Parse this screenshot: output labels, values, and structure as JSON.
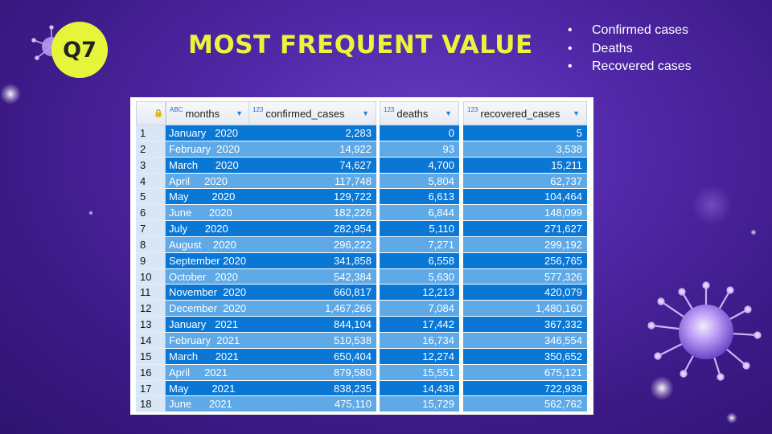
{
  "badge": "Q7",
  "title": "MOST FREQUENT VALUE",
  "bullets": [
    "Confirmed cases",
    "Deaths",
    "Recovered cases"
  ],
  "table": {
    "columns": [
      {
        "type": "ABC",
        "name": "months"
      },
      {
        "type": "123",
        "name": "confirmed_cases"
      },
      {
        "type": "123",
        "name": "deaths"
      },
      {
        "type": "123",
        "name": "recovered_cases"
      }
    ],
    "rows": [
      {
        "n": "1",
        "month": "January   2020",
        "confirmed": "2,283",
        "deaths": "0",
        "recovered": "5"
      },
      {
        "n": "2",
        "month": "February  2020",
        "confirmed": "14,922",
        "deaths": "93",
        "recovered": "3,538"
      },
      {
        "n": "3",
        "month": "March      2020",
        "confirmed": "74,627",
        "deaths": "4,700",
        "recovered": "15,211"
      },
      {
        "n": "4",
        "month": "April     2020",
        "confirmed": "117,748",
        "deaths": "5,804",
        "recovered": "62,737"
      },
      {
        "n": "5",
        "month": "May        2020",
        "confirmed": "129,722",
        "deaths": "6,613",
        "recovered": "104,464"
      },
      {
        "n": "6",
        "month": "June      2020",
        "confirmed": "182,226",
        "deaths": "6,844",
        "recovered": "148,099"
      },
      {
        "n": "7",
        "month": "July      2020",
        "confirmed": "282,954",
        "deaths": "5,110",
        "recovered": "271,627"
      },
      {
        "n": "8",
        "month": "August    2020",
        "confirmed": "296,222",
        "deaths": "7,271",
        "recovered": "299,192"
      },
      {
        "n": "9",
        "month": "September 2020",
        "confirmed": "341,858",
        "deaths": "6,558",
        "recovered": "256,765"
      },
      {
        "n": "10",
        "month": "October   2020",
        "confirmed": "542,384",
        "deaths": "5,630",
        "recovered": "577,326"
      },
      {
        "n": "11",
        "month": "November  2020",
        "confirmed": "660,817",
        "deaths": "12,213",
        "recovered": "420,079"
      },
      {
        "n": "12",
        "month": "December  2020",
        "confirmed": "1,467,266",
        "deaths": "7,084",
        "recovered": "1,480,160"
      },
      {
        "n": "13",
        "month": "January   2021",
        "confirmed": "844,104",
        "deaths": "17,442",
        "recovered": "367,332"
      },
      {
        "n": "14",
        "month": "February  2021",
        "confirmed": "510,538",
        "deaths": "16,734",
        "recovered": "346,554"
      },
      {
        "n": "15",
        "month": "March      2021",
        "confirmed": "650,404",
        "deaths": "12,274",
        "recovered": "350,652"
      },
      {
        "n": "16",
        "month": "April     2021",
        "confirmed": "879,580",
        "deaths": "15,551",
        "recovered": "675,121"
      },
      {
        "n": "17",
        "month": "May        2021",
        "confirmed": "838,235",
        "deaths": "14,438",
        "recovered": "722,938"
      },
      {
        "n": "18",
        "month": "June      2021",
        "confirmed": "475,110",
        "deaths": "15,729",
        "recovered": "562,762"
      }
    ]
  },
  "colors": {
    "background": "#5128a8",
    "accent_yellow": "#e9f53a",
    "row_dark": "#0a77d5",
    "row_light": "#5ea9e6",
    "rownum_bg": "#d7e7f7"
  },
  "icons": {
    "lock": "lock-icon",
    "sort": "sort-arrow-icon",
    "virus": "virus-icon"
  }
}
